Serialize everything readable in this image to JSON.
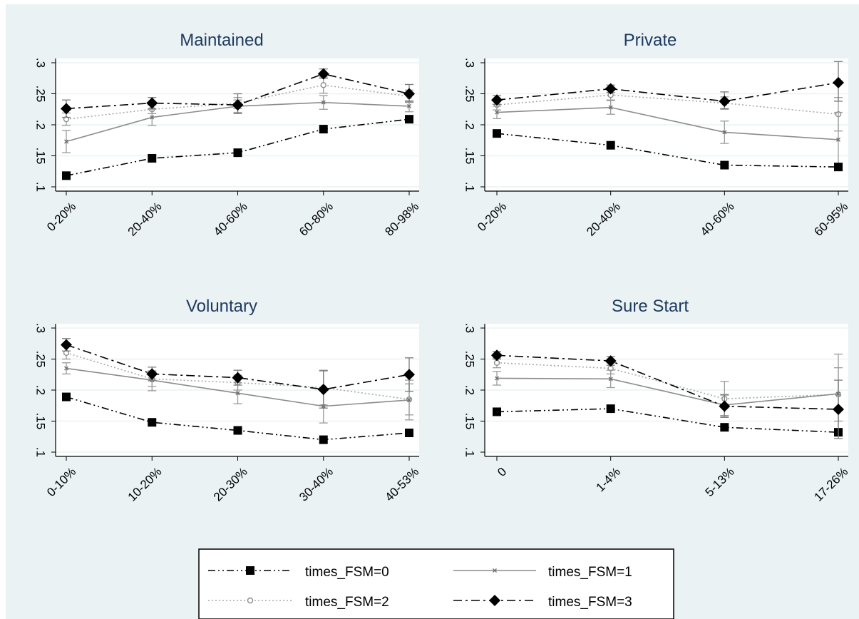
{
  "figure": {
    "background": "#eaf2f3",
    "plot_background": "#ffffff",
    "grid_color": "#eaf2f3",
    "title_color": "#1e3a5f"
  },
  "legend": {
    "position": "bottom",
    "entries": [
      {
        "label": "times_FSM=0",
        "marker": "filled-square",
        "line": "dash-dot-dot",
        "color": "#000000"
      },
      {
        "label": "times_FSM=1",
        "marker": "small-cross",
        "line": "solid",
        "color": "#8c8c8c"
      },
      {
        "label": "times_FSM=2",
        "marker": "hollow-circle",
        "line": "dotted",
        "color": "#8c8c8c"
      },
      {
        "label": "times_FSM=3",
        "marker": "filled-diamond",
        "line": "dash-dot",
        "color": "#000000"
      }
    ]
  },
  "chart_data": [
    {
      "type": "line",
      "title": "Maintained",
      "categories": [
        "0-20%",
        "20-40%",
        "40-60%",
        "60-80%",
        "80-98%"
      ],
      "ylim": [
        0.1,
        0.3
      ],
      "yticks": [
        0.1,
        0.15,
        0.2,
        0.25,
        0.3
      ],
      "ytick_labels": [
        ".1",
        ".15",
        ".2",
        ".25",
        ".3"
      ],
      "grid": true,
      "series": [
        {
          "name": "times_FSM=0",
          "values": [
            0.118,
            0.146,
            0.155,
            0.193,
            0.209
          ]
        },
        {
          "name": "times_FSM=1",
          "values": [
            0.173,
            0.212,
            0.23,
            0.236,
            0.23
          ],
          "ci": [
            [
              0.155,
              0.191
            ],
            [
              0.199,
              0.225
            ],
            [
              0.22,
              0.24
            ],
            [
              0.225,
              0.247
            ],
            [
              0.221,
              0.239
            ]
          ]
        },
        {
          "name": "times_FSM=2",
          "values": [
            0.209,
            0.225,
            0.235,
            0.264,
            0.246
          ],
          "ci": [
            [
              0.199,
              0.219
            ],
            [
              0.218,
              0.232
            ],
            [
              0.226,
              0.244
            ],
            [
              0.251,
              0.277
            ],
            [
              0.236,
              0.256
            ]
          ]
        },
        {
          "name": "times_FSM=3",
          "values": [
            0.226,
            0.235,
            0.232,
            0.282,
            0.25
          ],
          "ci": [
            [
              0.212,
              0.24
            ],
            [
              0.226,
              0.244
            ],
            [
              0.218,
              0.25
            ],
            [
              0.275,
              0.29
            ],
            [
              0.237,
              0.265
            ]
          ]
        }
      ]
    },
    {
      "type": "line",
      "title": "Private",
      "categories": [
        "0-20%",
        "20-40%",
        "40-60%",
        "60-95%"
      ],
      "ylim": [
        0.1,
        0.3
      ],
      "yticks": [
        0.1,
        0.15,
        0.2,
        0.25,
        0.3
      ],
      "ytick_labels": [
        ".1",
        ".15",
        ".2",
        ".25",
        ".3"
      ],
      "grid": true,
      "series": [
        {
          "name": "times_FSM=0",
          "values": [
            0.186,
            0.167,
            0.135,
            0.132
          ]
        },
        {
          "name": "times_FSM=1",
          "values": [
            0.22,
            0.228,
            0.188,
            0.176
          ],
          "ci": [
            [
              0.21,
              0.23
            ],
            [
              0.217,
              0.239
            ],
            [
              0.17,
              0.206
            ],
            [
              0.132,
              0.22
            ]
          ]
        },
        {
          "name": "times_FSM=2",
          "values": [
            0.232,
            0.248,
            0.235,
            0.217
          ],
          "ci": [
            [
              0.224,
              0.24
            ],
            [
              0.24,
              0.256
            ],
            [
              0.225,
              0.245
            ],
            [
              0.19,
              0.244
            ]
          ]
        },
        {
          "name": "times_FSM=3",
          "values": [
            0.24,
            0.258,
            0.238,
            0.268
          ],
          "ci": [
            [
              0.233,
              0.247
            ],
            [
              0.252,
              0.264
            ],
            [
              0.226,
              0.253
            ],
            [
              0.238,
              0.302
            ]
          ]
        }
      ]
    },
    {
      "type": "line",
      "title": "Voluntary",
      "categories": [
        "0-10%",
        "10-20%",
        "20-30%",
        "30-40%",
        "40-53%"
      ],
      "ylim": [
        0.1,
        0.3
      ],
      "yticks": [
        0.1,
        0.15,
        0.2,
        0.25,
        0.3
      ],
      "ytick_labels": [
        ".1",
        ".15",
        ".2",
        ".25",
        ".3"
      ],
      "grid": true,
      "series": [
        {
          "name": "times_FSM=0",
          "values": [
            0.189,
            0.148,
            0.135,
            0.12,
            0.131
          ]
        },
        {
          "name": "times_FSM=1",
          "values": [
            0.235,
            0.216,
            0.195,
            0.174,
            0.184
          ],
          "ci": [
            [
              0.226,
              0.244
            ],
            [
              0.199,
              0.231
            ],
            [
              0.178,
              0.212
            ],
            [
              0.147,
              0.201
            ],
            [
              0.152,
              0.216
            ]
          ]
        },
        {
          "name": "times_FSM=2",
          "values": [
            0.26,
            0.218,
            0.212,
            0.204,
            0.185
          ],
          "ci": [
            [
              0.25,
              0.27
            ],
            [
              0.206,
              0.23
            ],
            [
              0.2,
              0.224
            ],
            [
              0.176,
              0.232
            ],
            [
              0.16,
              0.21
            ]
          ]
        },
        {
          "name": "times_FSM=3",
          "values": [
            0.273,
            0.226,
            0.22,
            0.201,
            0.225
          ],
          "ci": [
            [
              0.263,
              0.283
            ],
            [
              0.215,
              0.237
            ],
            [
              0.208,
              0.232
            ],
            [
              0.171,
              0.231
            ],
            [
              0.198,
              0.252
            ]
          ]
        }
      ]
    },
    {
      "type": "line",
      "title": "Sure Start",
      "categories": [
        "0",
        "1-4%",
        "5-13%",
        "17-26%"
      ],
      "ylim": [
        0.1,
        0.3
      ],
      "yticks": [
        0.1,
        0.15,
        0.2,
        0.25,
        0.3
      ],
      "ytick_labels": [
        ".1",
        ".15",
        ".2",
        ".25",
        ".3"
      ],
      "grid": true,
      "series": [
        {
          "name": "times_FSM=0",
          "values": [
            0.165,
            0.17,
            0.14,
            0.132
          ]
        },
        {
          "name": "times_FSM=1",
          "values": [
            0.219,
            0.218,
            0.176,
            0.194
          ],
          "ci": [
            [
              0.208,
              0.23
            ],
            [
              0.204,
              0.232
            ],
            [
              0.159,
              0.193
            ],
            [
              0.13,
              0.258
            ]
          ]
        },
        {
          "name": "times_FSM=2",
          "values": [
            0.244,
            0.235,
            0.186,
            0.193
          ],
          "ci": [
            [
              0.236,
              0.252
            ],
            [
              0.226,
              0.244
            ],
            [
              0.158,
              0.214
            ],
            [
              0.15,
              0.236
            ]
          ]
        },
        {
          "name": "times_FSM=3",
          "values": [
            0.256,
            0.247,
            0.174,
            0.169
          ],
          "ci": [
            [
              0.25,
              0.262
            ],
            [
              0.24,
              0.254
            ],
            [
              0.156,
              0.192
            ],
            [
              0.122,
              0.216
            ]
          ]
        }
      ]
    }
  ]
}
